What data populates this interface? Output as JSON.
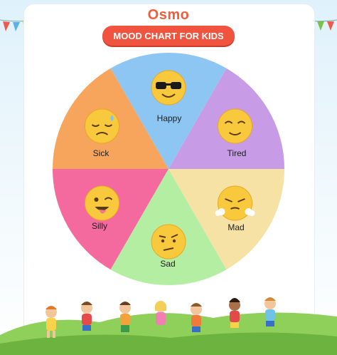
{
  "brand": {
    "logo_text": "Osmo"
  },
  "header": {
    "title": "MOOD CHART FOR KIDS"
  },
  "moods": [
    {
      "key": "happy",
      "label": "Happy",
      "color": "#8ec6f3",
      "icon": "sunglasses-face-icon"
    },
    {
      "key": "tired",
      "label": "Tired",
      "color": "#c79be6",
      "icon": "relieved-face-icon"
    },
    {
      "key": "mad",
      "label": "Mad",
      "color": "#f6e2a4",
      "icon": "steaming-face-icon"
    },
    {
      "key": "sad",
      "label": "Sad",
      "color": "#b3eea3",
      "icon": "confused-face-icon"
    },
    {
      "key": "silly",
      "label": "Silly",
      "color": "#f46a9f",
      "icon": "winking-tongue-face-icon"
    },
    {
      "key": "sick",
      "label": "Sick",
      "color": "#f7a45c",
      "icon": "sweating-face-icon"
    }
  ],
  "colors": {
    "accent": "#f0533e",
    "emoji": "#f9c93d",
    "grass": "#7cc24a"
  }
}
